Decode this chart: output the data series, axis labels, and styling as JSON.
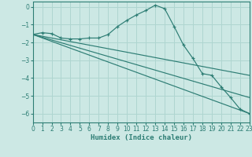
{
  "bg_color": "#cce8e4",
  "grid_color": "#afd5d0",
  "line_color": "#2d7d74",
  "xlabel": "Humidex (Indice chaleur)",
  "xlim": [
    0,
    23
  ],
  "ylim": [
    -6.5,
    0.3
  ],
  "yticks": [
    0,
    -1,
    -2,
    -3,
    -4,
    -5,
    -6
  ],
  "xticks": [
    0,
    1,
    2,
    3,
    4,
    5,
    6,
    7,
    8,
    9,
    10,
    11,
    12,
    13,
    14,
    15,
    16,
    17,
    18,
    19,
    20,
    21,
    22,
    23
  ],
  "curve_x": [
    0,
    1,
    2,
    3,
    4,
    5,
    6,
    7,
    8,
    9,
    10,
    11,
    12,
    13,
    14,
    15,
    16,
    17,
    18,
    19,
    20,
    21,
    22,
    23
  ],
  "curve_y": [
    -1.55,
    -1.45,
    -1.5,
    -1.75,
    -1.8,
    -1.8,
    -1.75,
    -1.75,
    -1.55,
    -1.1,
    -0.75,
    -0.45,
    -0.2,
    0.1,
    -0.1,
    -1.1,
    -2.15,
    -2.9,
    -3.75,
    -3.85,
    -4.5,
    -5.1,
    -5.75,
    -6.0
  ],
  "fan_lines": [
    {
      "x": [
        0,
        23
      ],
      "y": [
        -1.55,
        -3.85
      ]
    },
    {
      "x": [
        0,
        23
      ],
      "y": [
        -1.55,
        -5.1
      ]
    },
    {
      "x": [
        0,
        23
      ],
      "y": [
        -1.55,
        -6.0
      ]
    }
  ]
}
